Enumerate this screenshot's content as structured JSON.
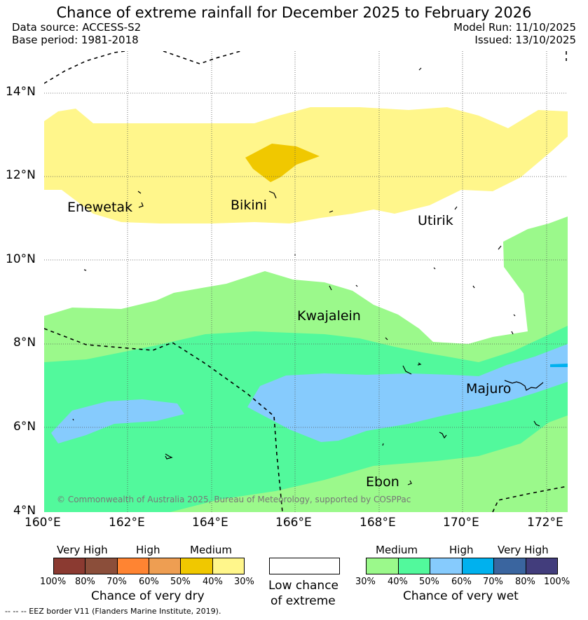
{
  "title": "Chance of extreme rainfall for December 2025 to February 2026",
  "header": {
    "data_source": "Data source: ACCESS-S2",
    "base_period": "Base period: 1981-2018",
    "model_run": "Model Run: 11/10/2025",
    "issued": "Issued: 13/10/2025"
  },
  "map": {
    "lat_labels": [
      "14°N",
      "12°N",
      "10°N",
      "8°N",
      "6°N",
      "4°N"
    ],
    "lon_labels": [
      "160°E",
      "162°E",
      "164°E",
      "166°E",
      "168°E",
      "170°E",
      "172°E"
    ],
    "places": [
      "Enewetak",
      "Bikini",
      "Utirik",
      "Kwajalein",
      "Majuro",
      "Ebon"
    ],
    "copyright": "© Commonwealth of Australia 2025, Bureau of Meteorology, supported by COSPPac"
  },
  "legend": {
    "dry": {
      "groups": [
        "Very High",
        "High",
        "Medium"
      ],
      "ticks": [
        "100%",
        "80%",
        "70%",
        "60%",
        "50%",
        "40%",
        "30%"
      ],
      "colors": [
        "#8b3a31",
        "#8b4e3a",
        "#ff8432",
        "#ee9e52",
        "#f0c800",
        "#fff68b"
      ],
      "title": "Chance of very dry"
    },
    "low": {
      "line1": "Low chance",
      "line2": "of extreme",
      "color": "#ffffff"
    },
    "wet": {
      "groups": [
        "Medium",
        "High",
        "Very High"
      ],
      "ticks": [
        "30%",
        "40%",
        "50%",
        "60%",
        "70%",
        "80%",
        "100%"
      ],
      "colors": [
        "#9bf98b",
        "#52f99c",
        "#86cbfd",
        "#00b1ee",
        "#3a659f",
        "#423d7c"
      ],
      "title": "Chance of very wet"
    },
    "eez_note": "--  --  -- EEZ border V11 (Flanders Marine Institute, 2019)."
  }
}
